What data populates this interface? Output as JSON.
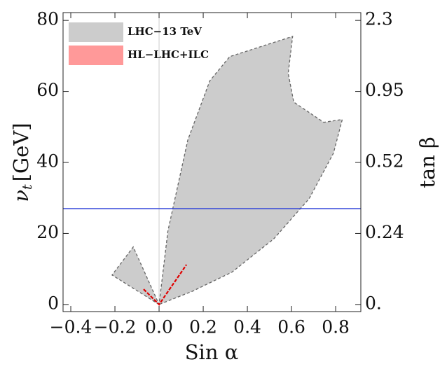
{
  "chart_data": {
    "type": "region",
    "xlabel": "Sin α",
    "ylabel": {
      "symbol": "ν",
      "subscript": "t",
      "unit": "[GeV]"
    },
    "y2label": "tan β",
    "xlim": [
      -0.435,
      0.914
    ],
    "ylim": [
      -2,
      82.2
    ],
    "xticks": [
      {
        "value": -0.4,
        "label": "−0.4"
      },
      {
        "value": -0.2,
        "label": "−0.2"
      },
      {
        "value": 0,
        "label": "0.0"
      },
      0.2,
      0.4,
      0.6,
      0.8
    ],
    "yticks": [
      0,
      20,
      40,
      60,
      80
    ],
    "y2ticks": [
      {
        "value": 0,
        "label": "0."
      },
      0.24,
      0.52,
      0.95,
      2.3
    ],
    "series": [
      {
        "name": "LHC−13 TeV",
        "color": "#cccccc",
        "edge_color": "#666666",
        "x": [
          0,
          -0.213,
          -0.117,
          0,
          0.04,
          0.13,
          0.23,
          0.32,
          0.605,
          0.585,
          0.61,
          0.746,
          0.83,
          0.79,
          0.68,
          0.52,
          0.33,
          0.15
        ],
        "y": [
          0,
          8.3,
          16.2,
          0,
          20.7,
          46.3,
          63,
          69.8,
          75.5,
          65.1,
          57,
          51.3,
          52.1,
          42.6,
          29.8,
          18.5,
          9.1,
          3.7
        ]
      },
      {
        "name": "HL−LHC+ILC",
        "color": "#ff9999",
        "edge_color": "#e00000",
        "x": [
          -0.07,
          0,
          0.124
        ],
        "y": [
          4.3,
          0,
          11.2
        ]
      }
    ],
    "hlines": [
      {
        "value": 27,
        "color": "#2b3fd8"
      }
    ],
    "vlines": [
      {
        "value": 0,
        "color": "#cccccc"
      }
    ]
  }
}
